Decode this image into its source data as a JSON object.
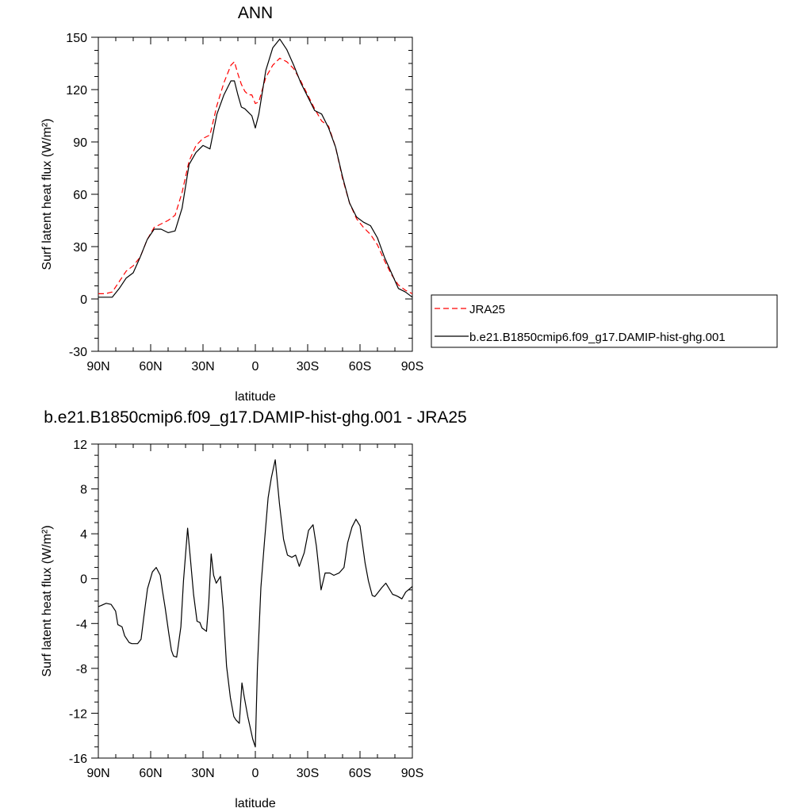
{
  "chart_data": [
    {
      "type": "line",
      "title": "ANN",
      "xlabel": "latitude",
      "ylabel": "Surf latent heat flux (W/m²)",
      "xlim": [
        90,
        -90
      ],
      "ylim": [
        -30,
        150
      ],
      "x_ticks": [
        {
          "value": 90,
          "label": "90N"
        },
        {
          "value": 60,
          "label": "60N"
        },
        {
          "value": 30,
          "label": "30N"
        },
        {
          "value": 0,
          "label": "0"
        },
        {
          "value": -30,
          "label": "30S"
        },
        {
          "value": -60,
          "label": "60S"
        },
        {
          "value": -90,
          "label": "90S"
        }
      ],
      "y_ticks": [
        {
          "value": -30,
          "label": "-30"
        },
        {
          "value": 0,
          "label": "0"
        },
        {
          "value": 30,
          "label": "30"
        },
        {
          "value": 60,
          "label": "60"
        },
        {
          "value": 90,
          "label": "90"
        },
        {
          "value": 120,
          "label": "120"
        },
        {
          "value": 150,
          "label": "150"
        }
      ],
      "legend": "right",
      "series": [
        {
          "name": "JRA25",
          "color": "#ff0000",
          "dash": "dashed",
          "x": [
            90,
            86,
            82,
            78,
            74,
            70,
            66,
            62,
            58,
            54,
            50,
            46,
            42,
            38,
            34,
            30,
            26,
            22,
            18,
            14,
            12,
            10,
            8,
            6,
            4,
            2,
            0,
            -2,
            -6,
            -10,
            -14,
            -18,
            -22,
            -26,
            -30,
            -34,
            -38,
            -42,
            -46,
            -50,
            -54,
            -58,
            -62,
            -66,
            -70,
            -74,
            -78,
            -82,
            -86,
            -90
          ],
          "y": [
            3,
            3,
            4,
            10,
            16,
            19,
            24,
            34,
            41,
            43,
            45,
            48,
            61,
            79,
            88,
            92,
            94,
            111,
            124,
            134,
            136,
            129,
            123,
            119,
            117,
            117,
            112,
            113,
            127,
            134,
            138,
            136,
            132,
            125,
            117,
            109,
            102,
            99,
            87,
            69,
            55,
            46,
            41,
            37,
            31,
            22,
            14,
            8,
            5,
            3
          ]
        },
        {
          "name": "b.e21.B1850cmip6.f09_g17.DAMIP-hist-ghg.001",
          "color": "#000000",
          "dash": "solid",
          "x": [
            90,
            86,
            82,
            78,
            74,
            70,
            66,
            62,
            58,
            54,
            50,
            46,
            42,
            38,
            34,
            30,
            26,
            22,
            18,
            14,
            12,
            10,
            8,
            6,
            4,
            2,
            0,
            -2,
            -6,
            -10,
            -14,
            -18,
            -22,
            -26,
            -30,
            -34,
            -38,
            -42,
            -46,
            -50,
            -54,
            -58,
            -62,
            -66,
            -70,
            -74,
            -78,
            -82,
            -86,
            -90
          ],
          "y": [
            1,
            1,
            1,
            6,
            12,
            15,
            24,
            34,
            40,
            40,
            38,
            39,
            52,
            77,
            84,
            88,
            86,
            106,
            117,
            125,
            125,
            117,
            110,
            109,
            107,
            105,
            98,
            106,
            131,
            144,
            149,
            143,
            134,
            124,
            116,
            108,
            106,
            98,
            87,
            70,
            55,
            47,
            44,
            42,
            35,
            24,
            15,
            6,
            4,
            1
          ]
        }
      ]
    },
    {
      "type": "line",
      "title": "b.e21.B1850cmip6.f09_g17.DAMIP-hist-ghg.001 - JRA25",
      "xlabel": "latitude",
      "ylabel": "Surf latent heat flux (W/m²)",
      "xlim": [
        90,
        -90
      ],
      "ylim": [
        -16,
        12
      ],
      "x_ticks": [
        {
          "value": 90,
          "label": "90N"
        },
        {
          "value": 60,
          "label": "60N"
        },
        {
          "value": 30,
          "label": "30N"
        },
        {
          "value": 0,
          "label": "0"
        },
        {
          "value": -30,
          "label": "30S"
        },
        {
          "value": -60,
          "label": "60S"
        },
        {
          "value": -90,
          "label": "90S"
        }
      ],
      "y_ticks": [
        {
          "value": -16,
          "label": "-16"
        },
        {
          "value": -12,
          "label": "-12"
        },
        {
          "value": -8,
          "label": "-8"
        },
        {
          "value": -4,
          "label": "-4"
        },
        {
          "value": 0,
          "label": "0"
        },
        {
          "value": 4,
          "label": "4"
        },
        {
          "value": 8,
          "label": "8"
        },
        {
          "value": 12,
          "label": "12"
        }
      ],
      "series": [
        {
          "color": "#000000",
          "dash": "solid",
          "x": [
            90,
            85.5,
            82.7,
            80.1,
            78.8,
            76.4,
            74.9,
            72.3,
            70.8,
            67.5,
            65.5,
            63.9,
            61.8,
            59.0,
            56.8,
            54.5,
            53.3,
            51.7,
            49.6,
            48.1,
            46.9,
            45.1,
            42.7,
            41.2,
            38.8,
            37.2,
            35.4,
            33.4,
            31.8,
            30.6,
            28.0,
            26.7,
            25.3,
            23.9,
            22.4,
            20.0,
            18.4,
            16.5,
            14.3,
            12.3,
            11.1,
            9.2,
            7.7,
            6.4,
            4.3,
            3.2,
            1.5,
            0,
            -1.2,
            -3.2,
            -5.2,
            -7.3,
            -9.2,
            -11.4,
            -13.8,
            -16.2,
            -18.4,
            -20.9,
            -23.1,
            -25.2,
            -28.0,
            -30.5,
            -33.1,
            -35.0,
            -37.7,
            -40.0,
            -42.7,
            -45.0,
            -48.0,
            -50.8,
            -52.9,
            -55.4,
            -57.7,
            -60.0,
            -62.9,
            -64.8,
            -67.0,
            -68.5,
            -70.0,
            -72.5,
            -74.8,
            -78.7,
            -80.5,
            -81.8,
            -84.0,
            -86.2,
            -88.5,
            -90
          ],
          "y": [
            -2.5,
            -2.2,
            -2.3,
            -2.9,
            -4.1,
            -4.3,
            -5.1,
            -5.7,
            -5.8,
            -5.8,
            -5.4,
            -3.4,
            -0.9,
            0.6,
            1.0,
            0.3,
            -1.0,
            -2.6,
            -4.9,
            -6.4,
            -6.9,
            -7.0,
            -4.3,
            -0.2,
            4.5,
            1.7,
            -1.4,
            -3.8,
            -3.9,
            -4.4,
            -4.7,
            -2.1,
            2.2,
            0.3,
            -0.4,
            0.2,
            -2.7,
            -7.8,
            -10.6,
            -12.3,
            -12.6,
            -12.9,
            -9.3,
            -10.5,
            -12.3,
            -13.1,
            -14.3,
            -15.0,
            -8.0,
            -0.8,
            3.2,
            7.2,
            9.0,
            10.6,
            6.7,
            3.5,
            2.1,
            1.9,
            2.1,
            1.1,
            2.3,
            4.3,
            4.8,
            2.9,
            -1.0,
            0.5,
            0.5,
            0.3,
            0.5,
            1.0,
            3.2,
            4.6,
            5.3,
            4.7,
            1.4,
            -0.2,
            -1.5,
            -1.6,
            -1.3,
            -0.8,
            -0.4,
            -1.4,
            -1.5,
            -1.6,
            -1.8,
            -1.2,
            -0.9,
            -0.7
          ]
        }
      ]
    }
  ]
}
